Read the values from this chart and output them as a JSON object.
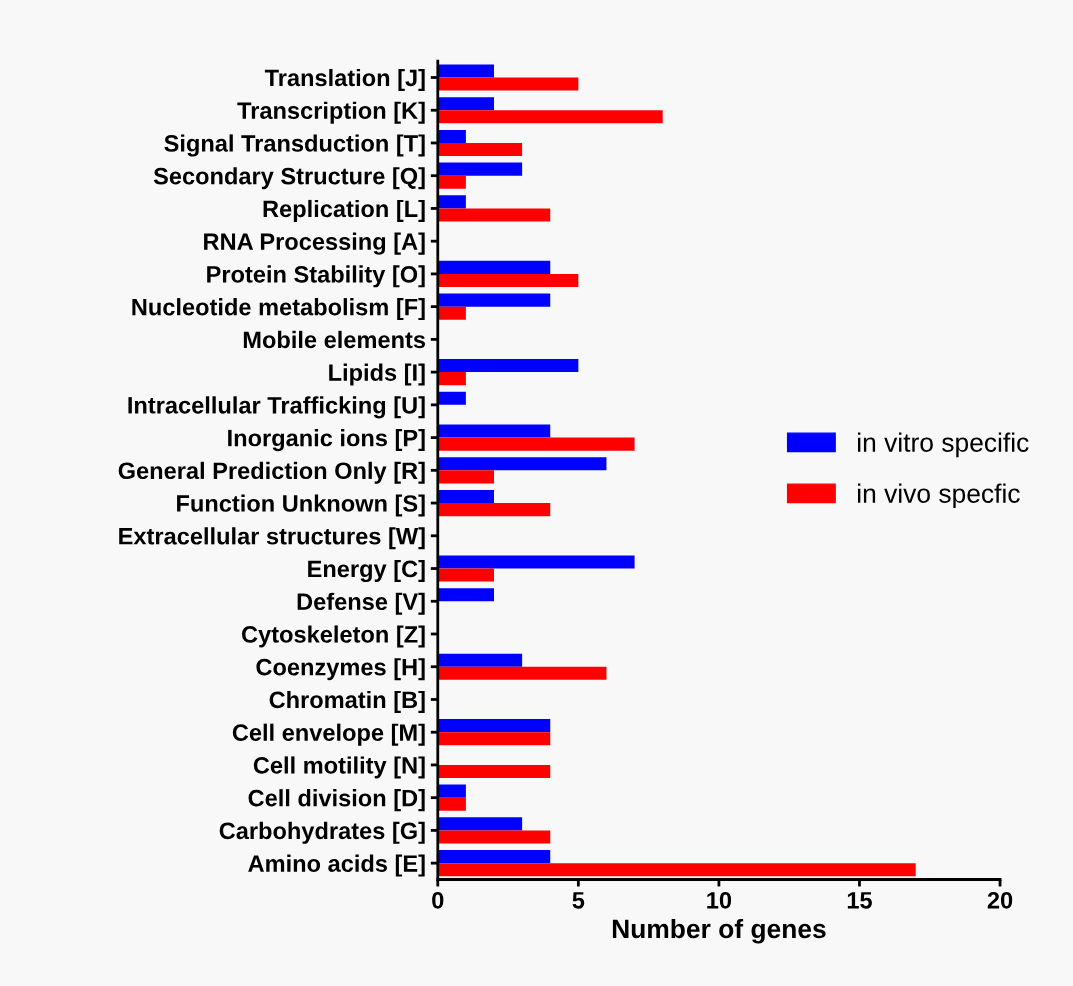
{
  "chart_data": {
    "type": "bar",
    "orientation": "horizontal",
    "xlabel": "Number of genes",
    "categories": [
      "Translation [J]",
      "Transcription [K]",
      "Signal Transduction [T]",
      "Secondary Structure [Q]",
      "Replication [L]",
      "RNA Processing [A]",
      "Protein Stability [O]",
      "Nucleotide metabolism [F]",
      "Mobile elements",
      "Lipids [I]",
      "Intracellular Trafficking [U]",
      "Inorganic ions [P]",
      "General Prediction Only [R]",
      "Function Unknown [S]",
      "Extracellular structures [W]",
      "Energy [C]",
      "Defense [V]",
      "Cytoskeleton [Z]",
      "Coenzymes [H]",
      "Chromatin [B]",
      "Cell envelope [M]",
      "Cell motility [N]",
      "Cell division [D]",
      "Carbohydrates [G]",
      "Amino acids [E]"
    ],
    "series": [
      {
        "name": "in vitro specific",
        "color": "#0000ff",
        "values": [
          2,
          2,
          1,
          3,
          1,
          0,
          4,
          4,
          0,
          5,
          1,
          4,
          6,
          2,
          0,
          7,
          2,
          0,
          3,
          0,
          4,
          0,
          1,
          3,
          4
        ]
      },
      {
        "name": "in vivo specfic",
        "color": "#ff0000",
        "values": [
          5,
          8,
          3,
          1,
          4,
          0,
          5,
          1,
          0,
          1,
          0,
          7,
          2,
          4,
          0,
          2,
          0,
          0,
          6,
          0,
          4,
          4,
          1,
          4,
          17
        ]
      }
    ],
    "xlim": [
      0,
      20
    ],
    "xticks": [
      0,
      5,
      10,
      15,
      20
    ],
    "grid": false,
    "legend": "right"
  }
}
